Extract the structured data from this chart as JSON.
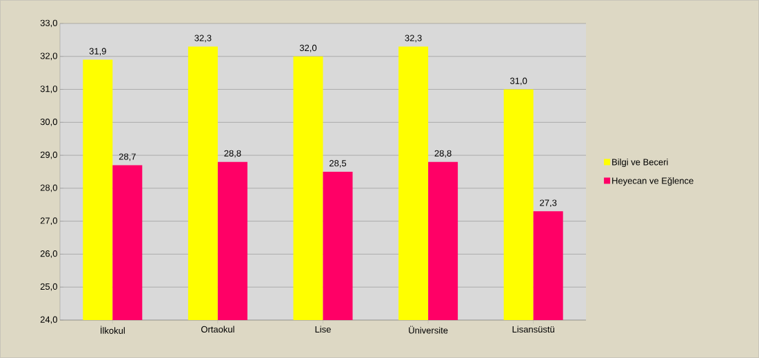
{
  "chart_data": {
    "type": "bar",
    "categories": [
      "İlkokul",
      "Ortaokul",
      "Lise",
      "Üniversite",
      "Lisansüstü"
    ],
    "series": [
      {
        "name": "Bilgi ve Beceri",
        "color": "#ffff00",
        "values": [
          31.9,
          32.3,
          32.0,
          32.3,
          31.0
        ],
        "value_labels": [
          "31,9",
          "32,3",
          "32,0",
          "32,3",
          "31,0"
        ]
      },
      {
        "name": "Heyecan ve Eğlence",
        "color": "#ff0066",
        "values": [
          28.7,
          28.8,
          28.5,
          28.8,
          27.3
        ],
        "value_labels": [
          "28,7",
          "28,8",
          "28,5",
          "28,8",
          "27,3"
        ]
      }
    ],
    "ylim": [
      24,
      33
    ],
    "yticks": [
      {
        "value": 24,
        "label": "24,0"
      },
      {
        "value": 25,
        "label": "25,0"
      },
      {
        "value": 26,
        "label": "26,0"
      },
      {
        "value": 27,
        "label": "27,0"
      },
      {
        "value": 28,
        "label": "28,0"
      },
      {
        "value": 29,
        "label": "29,0"
      },
      {
        "value": 30,
        "label": "30,0"
      },
      {
        "value": 31,
        "label": "31,0"
      },
      {
        "value": 32,
        "label": "32,0"
      },
      {
        "value": 33,
        "label": "33,0"
      }
    ],
    "grid": "y",
    "legend": "right"
  }
}
